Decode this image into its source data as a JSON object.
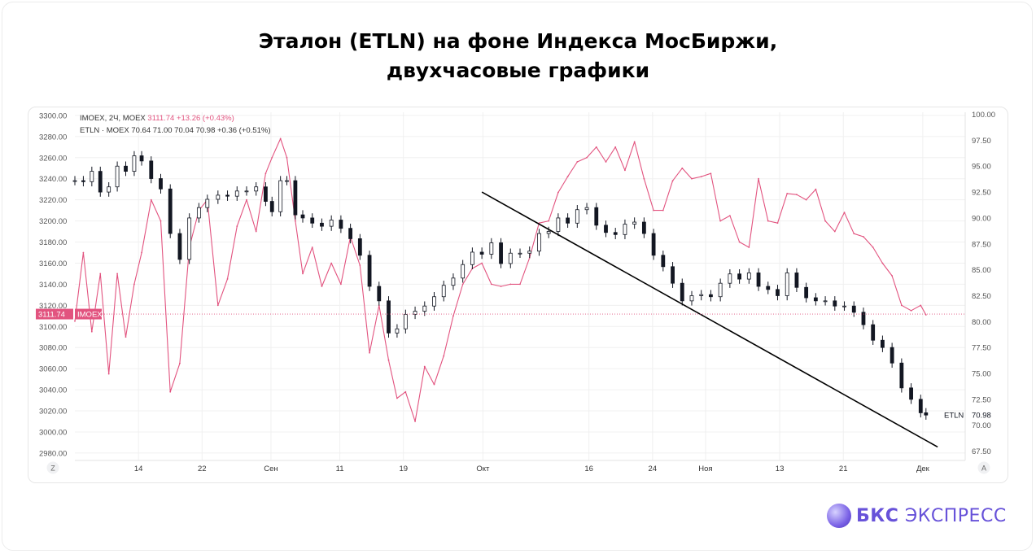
{
  "title": {
    "line1": "Эталон (ETLN) на фоне Индекса МосБиржи,",
    "line2": "двухчасовые графики"
  },
  "legend": {
    "imoex_prefix": "IMOEX, 2Ч, MOEX",
    "imoex_values": "3111.74  +13.26 (+0.43%)",
    "etln_prefix": "ETLN · MOEX  70.64  71.00  70.04  70.98  +0.36 (+0.51%)"
  },
  "brand": {
    "bold": "БКС",
    "rest": " ЭКСПРЕСС"
  },
  "corner_buttons": {
    "left": "Z",
    "right": "A"
  },
  "colors": {
    "imoex": "#e2537f",
    "etln": "#131722",
    "trend": "#000000",
    "grid": "#f0f0f0",
    "brand": "#6752d9"
  },
  "chart_data": {
    "type": "line",
    "x_ticks": [
      {
        "label": "14",
        "x": 6
      },
      {
        "label": "22",
        "x": 12
      },
      {
        "label": "Сен",
        "x": 18.5
      },
      {
        "label": "11",
        "x": 25
      },
      {
        "label": "19",
        "x": 31
      },
      {
        "label": "Окт",
        "x": 38.5
      },
      {
        "label": "16",
        "x": 48.5
      },
      {
        "label": "24",
        "x": 54.5
      },
      {
        "label": "Ноя",
        "x": 59.5
      },
      {
        "label": "13",
        "x": 66.5
      },
      {
        "label": "21",
        "x": 72.5
      },
      {
        "label": "Дек",
        "x": 80
      }
    ],
    "x_range": [
      0,
      84
    ],
    "left_axis": {
      "ylim": [
        2973,
        3303
      ],
      "ticks": [
        "2980.00",
        "3000.00",
        "3020.00",
        "3040.00",
        "3060.00",
        "3080.00",
        "3100.00",
        "3120.00",
        "3140.00",
        "3160.00",
        "3180.00",
        "3200.00",
        "3220.00",
        "3240.00",
        "3260.00",
        "3280.00",
        "3300.00"
      ],
      "last_label": "3111.74",
      "last_name": "IMOEX"
    },
    "right_axis": {
      "ylim": [
        66.6,
        100.2
      ],
      "ticks": [
        "67.50",
        "70.00",
        "72.50",
        "75.00",
        "77.50",
        "80.00",
        "82.50",
        "85.00",
        "87.50",
        "90.00",
        "92.50",
        "95.00",
        "97.50",
        "100.00"
      ],
      "last_label": "70.98",
      "last_name": "ETLN"
    },
    "series": [
      {
        "name": "IMOEX",
        "axis": "left",
        "style": "line",
        "x": [
          0,
          0.8,
          1.6,
          2.4,
          3.2,
          4,
          4.8,
          5.6,
          6.3,
          7.2,
          8.1,
          9,
          9.9,
          10.8,
          11.7,
          12.5,
          13.5,
          14.4,
          15.3,
          16.2,
          17.1,
          18,
          18.6,
          19.4,
          20,
          20.8,
          21.5,
          22.4,
          23.3,
          24.2,
          25.1,
          26,
          26.9,
          27.8,
          28.7,
          29.6,
          30.4,
          31.2,
          32.1,
          33,
          33.9,
          34.8,
          35.7,
          36.6,
          37.5,
          38.4,
          39.3,
          40.2,
          41.1,
          42,
          42.9,
          43.8,
          44.7,
          45.6,
          46.5,
          47.4,
          48.3,
          49.2,
          50.1,
          51,
          51.9,
          52.8,
          53.7,
          54.6,
          55.5,
          56.4,
          57.3,
          58.2,
          59.1,
          60,
          60.9,
          61.8,
          62.7,
          63.6,
          64.5,
          65.4,
          66.3,
          67.2,
          68.1,
          69,
          69.9,
          70.8,
          71.7,
          72.6,
          73.5,
          74.4,
          75.3,
          76.2,
          77.1,
          78,
          78.9,
          79.8,
          80.3
        ],
        "values": [
          3105,
          3170,
          3095,
          3150,
          3055,
          3150,
          3090,
          3140,
          3170,
          3220,
          3200,
          3038,
          3065,
          3175,
          3210,
          3220,
          3120,
          3145,
          3195,
          3220,
          3190,
          3245,
          3260,
          3278,
          3260,
          3200,
          3150,
          3175,
          3138,
          3160,
          3140,
          3185,
          3158,
          3075,
          3120,
          3068,
          3032,
          3038,
          3010,
          3062,
          3045,
          3072,
          3110,
          3140,
          3155,
          3160,
          3140,
          3138,
          3140,
          3140,
          3165,
          3198,
          3200,
          3227,
          3242,
          3256,
          3260,
          3270,
          3256,
          3270,
          3248,
          3275,
          3240,
          3210,
          3210,
          3238,
          3250,
          3240,
          3242,
          3245,
          3200,
          3205,
          3180,
          3175,
          3240,
          3200,
          3198,
          3226,
          3225,
          3220,
          3230,
          3200,
          3190,
          3208,
          3188,
          3185,
          3175,
          3160,
          3148,
          3120,
          3115,
          3120,
          3111
        ]
      },
      {
        "name": "ETLN",
        "axis": "right",
        "style": "candles",
        "x": [
          0,
          0.8,
          1.6,
          2.4,
          3.2,
          4,
          4.8,
          5.6,
          6.3,
          7.2,
          8.1,
          9,
          9.9,
          10.8,
          11.7,
          12.5,
          13.5,
          14.4,
          15.3,
          16.2,
          17.1,
          18,
          18.6,
          19.4,
          20,
          20.8,
          21.5,
          22.4,
          23.3,
          24.2,
          25.1,
          26,
          26.9,
          27.8,
          28.7,
          29.6,
          30.4,
          31.2,
          32.1,
          33,
          33.9,
          34.8,
          35.7,
          36.6,
          37.5,
          38.4,
          39.3,
          40.2,
          41.1,
          42,
          42.9,
          43.8,
          44.7,
          45.6,
          46.5,
          47.4,
          48.3,
          49.2,
          50.1,
          51,
          51.9,
          52.8,
          53.7,
          54.6,
          55.5,
          56.4,
          57.3,
          58.2,
          59.1,
          60,
          60.9,
          61.8,
          62.7,
          63.6,
          64.5,
          65.4,
          66.3,
          67.2,
          68.1,
          69,
          69.9,
          70.8,
          71.7,
          72.6,
          73.5,
          74.4,
          75.3,
          76.2,
          77.1,
          78,
          78.9,
          79.8,
          80.3
        ],
        "values": [
          93.6,
          93.5,
          94.5,
          92.5,
          93,
          95,
          94.5,
          96,
          95.5,
          93.8,
          92.8,
          88.5,
          86,
          90,
          91,
          91.8,
          92.2,
          92.1,
          92.6,
          92.6,
          93,
          91.6,
          90.6,
          93.6,
          93.6,
          90.3,
          90,
          89.5,
          89.2,
          89.8,
          89,
          88,
          86.4,
          83.4,
          82,
          78.9,
          79.3,
          80.7,
          81,
          81.5,
          82.4,
          83.5,
          84.2,
          85.5,
          86.7,
          86.5,
          87.6,
          85.6,
          86.6,
          86.6,
          86.8,
          88.5,
          88.7,
          90,
          89.5,
          90.8,
          91,
          89.3,
          88.6,
          88.4,
          89.4,
          89.6,
          88.5,
          86.4,
          85.3,
          83.7,
          82,
          82.5,
          82.6,
          82.4,
          83.7,
          84.6,
          84.1,
          84.7,
          83.4,
          83.1,
          82.5,
          84.7,
          83.3,
          82.3,
          82,
          82,
          81.5,
          81.5,
          80.9,
          79.7,
          78.2,
          77.5,
          76,
          73.6,
          72.5,
          71.2,
          70.98
        ]
      }
    ],
    "trendline": {
      "axis": "right",
      "x": [
        38.4,
        81.4
      ],
      "values": [
        92.5,
        67.9
      ]
    }
  }
}
